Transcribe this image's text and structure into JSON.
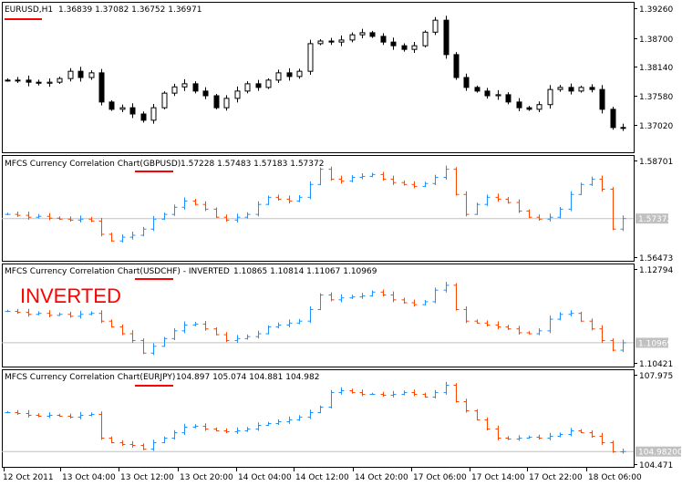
{
  "colors": {
    "up_bar": "#1e90ff",
    "down_bar": "#ff4500",
    "underline": "#ff0000",
    "price_line": "#c0c0c0",
    "candle": "#000000",
    "inverted_label": "#ff0000"
  },
  "time_axis": [
    "12 Oct 2011",
    "13 Oct 04:00",
    "13 Oct 12:00",
    "13 Oct 20:00",
    "14 Oct 04:00",
    "14 Oct 12:00",
    "14 Oct 20:00",
    "17 Oct 06:00",
    "17 Oct 14:00",
    "17 Oct 22:00",
    "18 Oct 06:00"
  ],
  "chart_data": [
    {
      "type": "candlestick",
      "header": "EURUSD,H1",
      "ohlc_label": "1.36839 1.37082 1.36752 1.36971",
      "ylim": [
        1.36495,
        1.39383
      ],
      "yticks": [
        "1.39260",
        "1.38700",
        "1.38140",
        "1.37580",
        "1.37020"
      ],
      "closes": [
        1.3788,
        1.3788,
        1.3784,
        1.3782,
        1.3784,
        1.3791,
        1.3805,
        1.3793,
        1.3802,
        1.3746,
        1.3732,
        1.3735,
        1.3723,
        1.3711,
        1.3735,
        1.3763,
        1.3775,
        1.3781,
        1.3767,
        1.3758,
        1.3735,
        1.3753,
        1.3767,
        1.3781,
        1.3774,
        1.3788,
        1.3802,
        1.3795,
        1.3805,
        1.3858,
        1.3863,
        1.3861,
        1.3865,
        1.3875,
        1.3879,
        1.3872,
        1.3861,
        1.3854,
        1.3847,
        1.3854,
        1.388,
        1.3903,
        1.3837,
        1.3793,
        1.3774,
        1.3767,
        1.3758,
        1.376,
        1.3746,
        1.3735,
        1.3732,
        1.3741,
        1.377,
        1.3774,
        1.3767,
        1.3774,
        1.377,
        1.3732,
        1.3697,
        1.36971
      ]
    },
    {
      "type": "bar",
      "header": "MFCS Currency Correlation Chart(GBPUSD)",
      "ohlc_label": "1.57228 1.57483 1.57183 1.57372",
      "ylim": [
        1.56473,
        1.58701
      ],
      "yticks": [
        "1.58701",
        "1.56473"
      ],
      "current": "1.57372",
      "closes": [
        1.5746,
        1.5744,
        1.574,
        1.5742,
        1.5738,
        1.5736,
        1.5734,
        1.5736,
        1.5732,
        1.5704,
        1.569,
        1.5698,
        1.5702,
        1.5715,
        1.5736,
        1.5746,
        1.5761,
        1.5774,
        1.5767,
        1.5757,
        1.574,
        1.5734,
        1.574,
        1.5746,
        1.5767,
        1.5782,
        1.5778,
        1.5774,
        1.5782,
        1.5809,
        1.5841,
        1.582,
        1.5816,
        1.5824,
        1.5826,
        1.583,
        1.582,
        1.5813,
        1.5809,
        1.5805,
        1.5811,
        1.5824,
        1.5841,
        1.5788,
        1.5746,
        1.5767,
        1.5782,
        1.5778,
        1.5771,
        1.5753,
        1.574,
        1.5736,
        1.574,
        1.5757,
        1.5788,
        1.5809,
        1.582,
        1.5799,
        1.5715,
        1.57372
      ]
    },
    {
      "type": "bar",
      "header": "MFCS Currency Correlation Chart(USDCHF) - INVERTED",
      "ohlc_label": "1.10865 1.10814 1.11067 1.10969",
      "annotation": "INVERTED",
      "ylim": [
        1.10394,
        1.1284
      ],
      "yticks": [
        "1.12794",
        "1.10421"
      ],
      "current": "1.10969",
      "closes": [
        1.11713,
        1.1169,
        1.11644,
        1.11667,
        1.11621,
        1.11644,
        1.11598,
        1.11644,
        1.11667,
        1.11483,
        1.11345,
        1.11184,
        1.11023,
        1.10724,
        1.10885,
        1.11069,
        1.11253,
        1.11391,
        1.11414,
        1.11299,
        1.11161,
        1.11023,
        1.11069,
        1.11115,
        1.11184,
        1.11345,
        1.11391,
        1.11437,
        1.11483,
        1.11759,
        1.12104,
        1.11989,
        1.12035,
        1.12058,
        1.12081,
        1.12173,
        1.12104,
        1.11989,
        1.1192,
        1.11874,
        1.11943,
        1.12219,
        1.12334,
        1.11759,
        1.11483,
        1.11437,
        1.11391,
        1.11345,
        1.11299,
        1.11207,
        1.11184,
        1.11253,
        1.11529,
        1.11644,
        1.11667,
        1.11483,
        1.11299,
        1.11023,
        1.10793,
        1.10969
      ]
    },
    {
      "type": "bar",
      "header": "MFCS Currency Correlation Chart(EURJPY)",
      "ohlc_label": "104.897 105.074 104.881 104.982",
      "ylim": [
        104.364,
        108.19
      ],
      "yticks": [
        "107.975",
        "104.471"
      ],
      "current": "104.98200",
      "closes": [
        106.509,
        106.473,
        106.402,
        106.366,
        106.402,
        106.366,
        106.33,
        106.402,
        106.437,
        105.508,
        105.329,
        105.257,
        105.222,
        105.078,
        105.329,
        105.508,
        105.722,
        105.937,
        105.972,
        105.865,
        105.794,
        105.758,
        105.794,
        105.865,
        106.008,
        106.08,
        106.151,
        106.223,
        106.33,
        106.509,
        106.723,
        107.295,
        107.367,
        107.295,
        107.224,
        107.224,
        107.188,
        107.224,
        107.295,
        107.224,
        107.117,
        107.295,
        107.582,
        106.938,
        106.58,
        106.223,
        105.865,
        105.508,
        105.472,
        105.508,
        105.543,
        105.508,
        105.579,
        105.651,
        105.794,
        105.722,
        105.579,
        105.329,
        104.971,
        104.982
      ]
    }
  ]
}
